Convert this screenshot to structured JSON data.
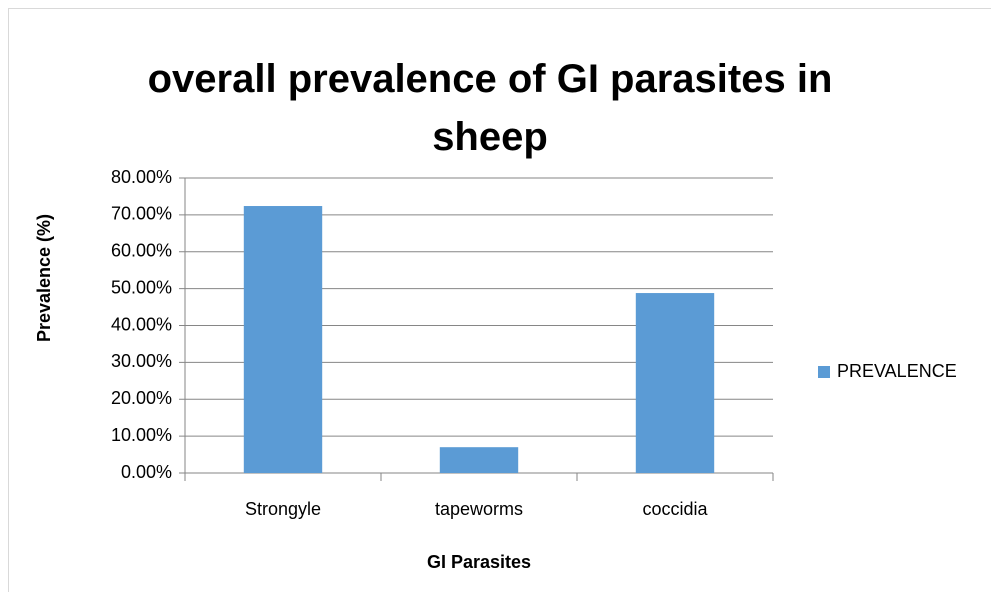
{
  "chart_data": {
    "type": "bar",
    "title": "overall prevalence of GI parasites in sheep",
    "x_label": "GI Parasites",
    "y_label": "Prevalence (%)",
    "categories": [
      "Strongyle",
      "tapeworms",
      "coccidia"
    ],
    "series": [
      {
        "name": "PREVALENCE",
        "color": "#5b9bd5",
        "values": [
          72.4,
          7.0,
          48.8
        ]
      }
    ],
    "ylim": [
      0,
      80
    ],
    "yticks": [
      {
        "value": 0,
        "label": "0.00%"
      },
      {
        "value": 10,
        "label": "10.00%"
      },
      {
        "value": 20,
        "label": "20.00%"
      },
      {
        "value": 30,
        "label": "30.00%"
      },
      {
        "value": 40,
        "label": "40.00%"
      },
      {
        "value": 50,
        "label": "50.00%"
      },
      {
        "value": 60,
        "label": "60.00%"
      },
      {
        "value": 70,
        "label": "70.00%"
      },
      {
        "value": 80,
        "label": "80.00%"
      }
    ],
    "grid": true,
    "legend": "right"
  }
}
